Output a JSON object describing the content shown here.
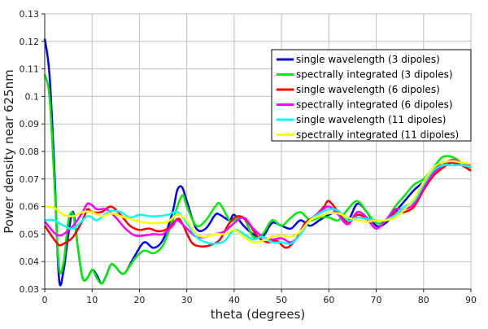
{
  "chart_data": {
    "type": "line",
    "title": "",
    "xlabel": "theta (degrees)",
    "ylabel": "Power density near 625nm",
    "xlim": [
      0,
      90
    ],
    "ylim": [
      0.03,
      0.13
    ],
    "xticks": [
      "0",
      "10",
      "20",
      "30",
      "40",
      "50",
      "60",
      "70",
      "80",
      "90"
    ],
    "yticks": [
      "0.03",
      "0.04",
      "0.05",
      "0.06",
      "0.07",
      "0.08",
      "0.09",
      "0.1",
      "0.11",
      "0.12",
      "0.13"
    ],
    "grid": true,
    "legend_position": "top-right",
    "series": [
      {
        "name": "single wavelength (3 dipoles)",
        "color": "#0000ff",
        "x": [
          0,
          1,
          2,
          3,
          4,
          5,
          6,
          7,
          8,
          9,
          10,
          11,
          12,
          13,
          14,
          15,
          16,
          17,
          19,
          21,
          23,
          25,
          27,
          28,
          29,
          30,
          32,
          34,
          36,
          37,
          39,
          40,
          42,
          44,
          46,
          48,
          50,
          52,
          54,
          56,
          58,
          60,
          62,
          64,
          66,
          68,
          70,
          72,
          74,
          76,
          78,
          80,
          82,
          84,
          86,
          88,
          90
        ],
        "y": [
          0.121,
          0.108,
          0.075,
          0.034,
          0.037,
          0.05,
          0.058,
          0.045,
          0.034,
          0.034,
          0.037,
          0.035,
          0.032,
          0.035,
          0.039,
          0.038,
          0.036,
          0.036,
          0.042,
          0.047,
          0.045,
          0.048,
          0.058,
          0.066,
          0.067,
          0.062,
          0.052,
          0.052,
          0.057,
          0.057,
          0.055,
          0.057,
          0.053,
          0.05,
          0.049,
          0.054,
          0.053,
          0.052,
          0.055,
          0.053,
          0.055,
          0.057,
          0.058,
          0.055,
          0.061,
          0.058,
          0.053,
          0.054,
          0.058,
          0.062,
          0.066,
          0.069,
          0.073,
          0.076,
          0.076,
          0.075,
          0.073
        ]
      },
      {
        "name": "spectrally integrated (3 dipoles)",
        "color": "#00ee00",
        "x": [
          0,
          1,
          2,
          3,
          4,
          5,
          6,
          7,
          8,
          9,
          10,
          11,
          12,
          13,
          14,
          15,
          16,
          17,
          19,
          21,
          23,
          25,
          27,
          29,
          30,
          32,
          34,
          36,
          37,
          39,
          40,
          42,
          44,
          46,
          48,
          50,
          52,
          54,
          56,
          58,
          60,
          62,
          64,
          66,
          68,
          70,
          72,
          74,
          76,
          78,
          80,
          82,
          84,
          86,
          88,
          90
        ],
        "y": [
          0.108,
          0.1,
          0.07,
          0.038,
          0.04,
          0.055,
          0.057,
          0.045,
          0.034,
          0.034,
          0.037,
          0.034,
          0.032,
          0.035,
          0.039,
          0.038,
          0.036,
          0.036,
          0.041,
          0.044,
          0.043,
          0.046,
          0.055,
          0.064,
          0.06,
          0.053,
          0.055,
          0.06,
          0.061,
          0.055,
          0.055,
          0.056,
          0.049,
          0.05,
          0.055,
          0.053,
          0.056,
          0.058,
          0.055,
          0.056,
          0.056,
          0.055,
          0.059,
          0.062,
          0.058,
          0.054,
          0.055,
          0.06,
          0.064,
          0.068,
          0.07,
          0.074,
          0.078,
          0.078,
          0.076,
          0.074
        ]
      },
      {
        "name": "single wavelength (6 dipoles)",
        "color": "#ff0000",
        "x": [
          0,
          2,
          3,
          4,
          6,
          8,
          9,
          10,
          12,
          14,
          16,
          18,
          20,
          22,
          24,
          26,
          28,
          29,
          31,
          33,
          35,
          37,
          39,
          41,
          43,
          45,
          47,
          49,
          51,
          53,
          55,
          57,
          59,
          60,
          62,
          64,
          66,
          68,
          70,
          72,
          74,
          76,
          78,
          80,
          82,
          84,
          86,
          88,
          90
        ],
        "y": [
          0.053,
          0.048,
          0.046,
          0.0465,
          0.049,
          0.055,
          0.059,
          0.058,
          0.058,
          0.06,
          0.057,
          0.053,
          0.0515,
          0.052,
          0.051,
          0.052,
          0.0555,
          0.054,
          0.047,
          0.0455,
          0.046,
          0.048,
          0.054,
          0.0565,
          0.054,
          0.049,
          0.047,
          0.0475,
          0.045,
          0.048,
          0.054,
          0.0565,
          0.06,
          0.062,
          0.058,
          0.054,
          0.057,
          0.0555,
          0.052,
          0.055,
          0.058,
          0.058,
          0.06,
          0.066,
          0.071,
          0.074,
          0.076,
          0.075,
          0.073
        ]
      },
      {
        "name": "spectrally integrated (6 dipoles)",
        "color": "#ff00ff",
        "x": [
          0,
          2,
          3,
          4,
          6,
          8,
          9,
          10,
          11,
          13,
          15,
          17,
          19,
          21,
          23,
          25,
          27,
          28,
          30,
          32,
          34,
          36,
          38,
          40,
          42,
          44,
          46,
          48,
          50,
          52,
          54,
          56,
          58,
          60,
          62,
          64,
          66,
          68,
          70,
          72,
          74,
          76,
          78,
          80,
          82,
          84,
          86,
          88,
          90
        ],
        "y": [
          0.0545,
          0.0505,
          0.0495,
          0.05,
          0.053,
          0.058,
          0.061,
          0.0605,
          0.059,
          0.059,
          0.056,
          0.052,
          0.0495,
          0.0495,
          0.05,
          0.05,
          0.053,
          0.055,
          0.052,
          0.049,
          0.049,
          0.05,
          0.051,
          0.054,
          0.056,
          0.052,
          0.049,
          0.048,
          0.0485,
          0.047,
          0.05,
          0.055,
          0.058,
          0.06,
          0.057,
          0.0535,
          0.058,
          0.056,
          0.052,
          0.055,
          0.059,
          0.059,
          0.061,
          0.067,
          0.072,
          0.075,
          0.077,
          0.076,
          0.075
        ]
      },
      {
        "name": "single wavelength (11 dipoles)",
        "color": "#00ffff",
        "x": [
          0,
          2,
          4,
          6,
          8,
          9,
          10,
          11,
          13,
          14,
          16,
          18,
          20,
          22,
          24,
          26,
          28,
          30,
          32,
          34,
          36,
          38,
          40,
          42,
          44,
          46,
          48,
          50,
          52,
          54,
          56,
          58,
          60,
          62,
          64,
          66,
          68,
          70,
          72,
          74,
          76,
          78,
          80,
          82,
          84,
          86,
          88,
          90
        ],
        "y": [
          0.055,
          0.055,
          0.053,
          0.052,
          0.055,
          0.0565,
          0.056,
          0.055,
          0.0575,
          0.0585,
          0.058,
          0.056,
          0.057,
          0.0565,
          0.0565,
          0.057,
          0.058,
          0.054,
          0.049,
          0.047,
          0.0465,
          0.0475,
          0.0515,
          0.05,
          0.048,
          0.049,
          0.047,
          0.047,
          0.0465,
          0.05,
          0.055,
          0.0575,
          0.059,
          0.0585,
          0.055,
          0.056,
          0.0555,
          0.055,
          0.055,
          0.057,
          0.06,
          0.062,
          0.068,
          0.073,
          0.075,
          0.075,
          0.075,
          0.0745
        ]
      },
      {
        "name": "spectrally integrated (11 dipoles)",
        "color": "#ffff00",
        "x": [
          0,
          2,
          4,
          6,
          8,
          10,
          12,
          14,
          16,
          18,
          20,
          22,
          24,
          26,
          28,
          30,
          32,
          34,
          36,
          38,
          40,
          42,
          44,
          46,
          48,
          50,
          52,
          54,
          56,
          58,
          60,
          62,
          64,
          66,
          68,
          70,
          72,
          74,
          76,
          78,
          80,
          82,
          84,
          86,
          88,
          90
        ],
        "y": [
          0.06,
          0.0595,
          0.057,
          0.0565,
          0.058,
          0.058,
          0.0565,
          0.0575,
          0.0565,
          0.0555,
          0.0545,
          0.054,
          0.054,
          0.0545,
          0.057,
          0.055,
          0.05,
          0.049,
          0.05,
          0.05,
          0.0515,
          0.049,
          0.047,
          0.0475,
          0.049,
          0.0495,
          0.049,
          0.051,
          0.055,
          0.0565,
          0.0575,
          0.0575,
          0.056,
          0.055,
          0.0545,
          0.055,
          0.055,
          0.056,
          0.059,
          0.063,
          0.069,
          0.074,
          0.076,
          0.0765,
          0.076,
          0.0755
        ]
      }
    ]
  }
}
